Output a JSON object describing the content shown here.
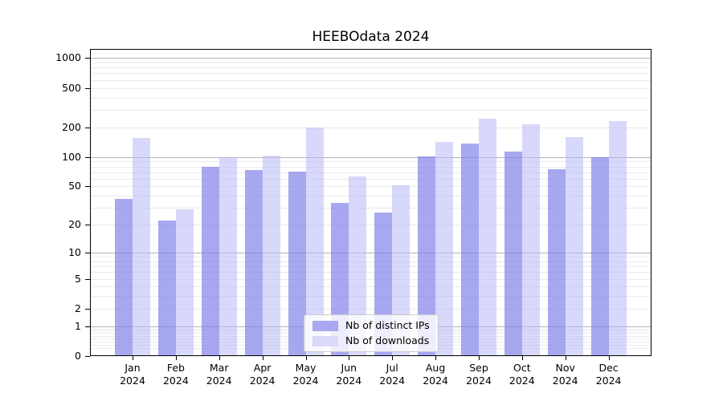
{
  "chart_data": {
    "type": "bar",
    "title": "HEEBOdata 2024",
    "categories": [
      "Jan",
      "Feb",
      "Mar",
      "Apr",
      "May",
      "Jun",
      "Jul",
      "Aug",
      "Sep",
      "Oct",
      "Nov",
      "Dec"
    ],
    "category_year": "2024",
    "series": [
      {
        "name": "Nb of distinct IPs",
        "values": [
          37,
          22,
          79,
          74,
          71,
          34,
          27,
          102,
          138,
          114,
          75,
          100
        ],
        "color": "rgba(131,131,234,0.7)",
        "swatch": "#a9a9f1"
      },
      {
        "name": "Nb of downloads",
        "values": [
          157,
          29,
          100,
          104,
          198,
          63,
          51,
          141,
          246,
          214,
          160,
          230
        ],
        "color": "rgba(184,184,246,0.55)",
        "swatch": "#d9d9f9"
      }
    ],
    "y_axis": {
      "scale": "symlog",
      "ticks": [
        0,
        1,
        2,
        5,
        10,
        20,
        50,
        100,
        200,
        500,
        1000
      ],
      "ylim": [
        0,
        1233
      ],
      "major_gridlines": [
        1,
        10,
        100,
        1000
      ]
    },
    "legend": {
      "position": "lower center"
    },
    "grid": true,
    "colors": {
      "major_grid": "#b3b3b3",
      "minor_grid": "#eaeaea",
      "text": "#000000"
    }
  }
}
